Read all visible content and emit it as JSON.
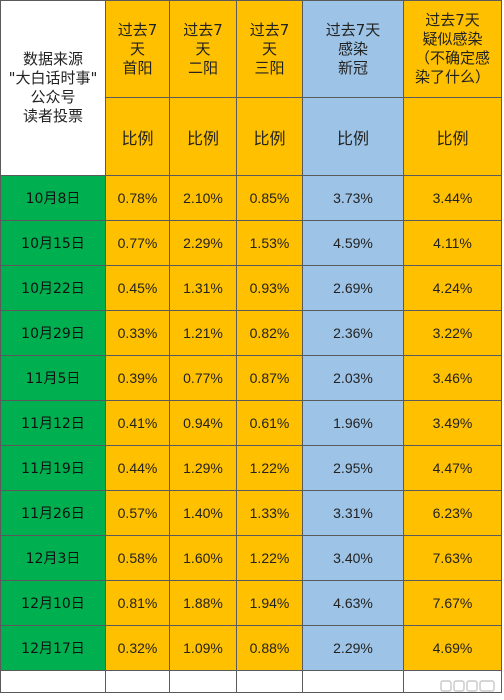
{
  "header": {
    "source_lines": [
      "数据来源",
      "\"大白话时事\"",
      "公众号",
      "读者投票"
    ],
    "columns": [
      {
        "lines": [
          "过去7",
          "天",
          "首阳"
        ],
        "color": "#ffc000"
      },
      {
        "lines": [
          "过去7",
          "天",
          "二阳"
        ],
        "color": "#ffc000"
      },
      {
        "lines": [
          "过去7",
          "天",
          "三阳"
        ],
        "color": "#ffc000"
      },
      {
        "lines": [
          "过去7天",
          "感染",
          "新冠"
        ],
        "color": "#9dc3e6"
      },
      {
        "lines": [
          "过去7天",
          "疑似感染",
          "（不确定感",
          "染了什么）"
        ],
        "color": "#ffc000"
      }
    ],
    "subheader": [
      "比例",
      "比例",
      "比例",
      "比例",
      "比例"
    ]
  },
  "rows": [
    {
      "date": "10月8日",
      "values": [
        "0.78%",
        "2.10%",
        "0.85%",
        "3.73%",
        "3.44%"
      ]
    },
    {
      "date": "10月15日",
      "values": [
        "0.77%",
        "2.29%",
        "1.53%",
        "4.59%",
        "4.11%"
      ]
    },
    {
      "date": "10月22日",
      "values": [
        "0.45%",
        "1.31%",
        "0.93%",
        "2.69%",
        "4.24%"
      ]
    },
    {
      "date": "10月29日",
      "values": [
        "0.33%",
        "1.21%",
        "0.82%",
        "2.36%",
        "3.22%"
      ]
    },
    {
      "date": "11月5日",
      "values": [
        "0.39%",
        "0.77%",
        "0.87%",
        "2.03%",
        "3.46%"
      ]
    },
    {
      "date": "11月12日",
      "values": [
        "0.41%",
        "0.94%",
        "0.61%",
        "1.96%",
        "3.49%"
      ]
    },
    {
      "date": "11月19日",
      "values": [
        "0.44%",
        "1.29%",
        "1.22%",
        "2.95%",
        "4.47%"
      ]
    },
    {
      "date": "11月26日",
      "values": [
        "0.57%",
        "1.40%",
        "1.33%",
        "3.31%",
        "6.23%"
      ]
    },
    {
      "date": "12月3日",
      "values": [
        "0.58%",
        "1.60%",
        "1.22%",
        "3.40%",
        "7.63%"
      ]
    },
    {
      "date": "12月10日",
      "values": [
        "0.81%",
        "1.88%",
        "1.94%",
        "4.63%",
        "7.67%"
      ]
    },
    {
      "date": "12月17日",
      "values": [
        "0.32%",
        "1.09%",
        "0.88%",
        "2.29%",
        "4.69%"
      ]
    }
  ]
}
